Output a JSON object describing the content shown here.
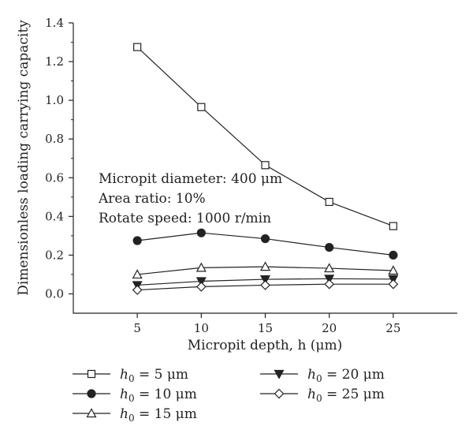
{
  "chart_data": {
    "type": "line",
    "xlabel": "Micropit depth, h (μm)",
    "ylabel": "Dimensionless loading carrying capacity",
    "x": [
      5,
      10,
      15,
      20,
      25
    ],
    "xticks": [
      "5",
      "10",
      "15",
      "20",
      "25"
    ],
    "xlim": [
      0,
      30
    ],
    "ylim": [
      -0.1,
      1.4
    ],
    "yticks": [
      "0.0",
      "0.2",
      "0.4",
      "0.6",
      "0.8",
      "1.0",
      "1.2",
      "1.4"
    ],
    "grid": false,
    "legend_position": "below plot",
    "annotations": [
      "Micropit diameter: 400 μm",
      "Area ratio: 10%",
      "Rotate speed: 1000 r/min"
    ],
    "series": [
      {
        "name": "h0 = 5 μm",
        "marker": "open-square",
        "values": [
          1.275,
          0.965,
          0.665,
          0.475,
          0.35
        ]
      },
      {
        "name": "h0 = 10 μm",
        "marker": "filled-circle",
        "values": [
          0.275,
          0.315,
          0.285,
          0.24,
          0.2
        ]
      },
      {
        "name": "h0 = 15 μm",
        "marker": "open-triangle",
        "values": [
          0.1,
          0.135,
          0.14,
          0.132,
          0.12
        ]
      },
      {
        "name": "h0 = 20 μm",
        "marker": "filled-down-triangle",
        "values": [
          0.045,
          0.065,
          0.075,
          0.078,
          0.076
        ]
      },
      {
        "name": "h0 = 25 μm",
        "marker": "open-diamond",
        "values": [
          0.02,
          0.037,
          0.045,
          0.05,
          0.05
        ]
      }
    ],
    "colors": {
      "line": "#222222",
      "background": "#ffffff"
    }
  }
}
